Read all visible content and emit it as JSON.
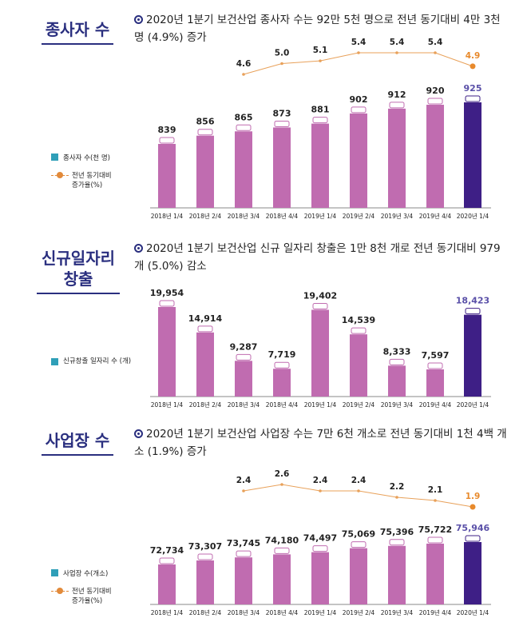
{
  "colors": {
    "bar": "#c06cb0",
    "bar_highlight": "#3e1f86",
    "line": "#e8a15a",
    "line_last": "#e88a2c",
    "title": "#2a2f7f",
    "legend_square": "#2f9fb8",
    "value_highlight": "#5a50a8"
  },
  "sections": [
    {
      "title": "종사자 수",
      "headline": "2020년 1분기 보건산업 종사자 수는 92만 5천 명으로 전년 동기대비 4만 3천 명 (4.9%) 증가",
      "legend_bar": "종사자 수(천 명)",
      "legend_line": "전년 동기대비 증가율(%)"
    },
    {
      "title": "신규일자리 창출",
      "headline": "2020년 1분기 보건산업 신규 일자리 창출은 1만 8천 개로 전년 동기대비 979개 (5.0%) 감소",
      "legend_bar": "신규창출 일자리 수 (개)"
    },
    {
      "title": "사업장 수",
      "headline": "2020년 1분기 보건산업 사업장 수는 7만 6천 개소로 전년 동기대비 1천 4백 개소 (1.9%) 증가",
      "legend_bar": "사업장 수(개소)",
      "legend_line": "전년 동기대비 증가율(%)"
    }
  ],
  "chart_data": [
    {
      "type": "bar",
      "categories": [
        "2018년 1/4",
        "2018년 2/4",
        "2018년 3/4",
        "2018년 4/4",
        "2019년 1/4",
        "2019년 2/4",
        "2019년 3/4",
        "2019년 4/4",
        "2020년 1/4"
      ],
      "series": [
        {
          "name": "종사자 수(천 명)",
          "values": [
            839,
            856,
            865,
            873,
            881,
            902,
            912,
            920,
            925
          ],
          "labels": [
            "839",
            "856",
            "865",
            "873",
            "881",
            "902",
            "912",
            "920",
            "925"
          ]
        },
        {
          "name": "전년 동기대비 증가율(%)",
          "values": [
            null,
            null,
            4.6,
            5.0,
            5.1,
            5.4,
            5.4,
            5.4,
            4.9
          ],
          "labels": [
            "",
            "",
            "4.6",
            "5.0",
            "5.1",
            "5.4",
            "5.4",
            "5.4",
            "4.9"
          ]
        }
      ]
    },
    {
      "type": "bar",
      "categories": [
        "2018년 1/4",
        "2018년 2/4",
        "2018년 3/4",
        "2018년 4/4",
        "2019년 1/4",
        "2019년 2/4",
        "2019년 3/4",
        "2019년 4/4",
        "2020년 1/4"
      ],
      "series": [
        {
          "name": "신규창출 일자리 수 (개)",
          "values": [
            19954,
            14914,
            9287,
            7719,
            19402,
            14539,
            8333,
            7597,
            18423
          ],
          "labels": [
            "19,954",
            "14,914",
            "9,287",
            "7,719",
            "19,402",
            "14,539",
            "8,333",
            "7,597",
            "18,423"
          ]
        }
      ]
    },
    {
      "type": "bar",
      "categories": [
        "2018년 1/4",
        "2018년 2/4",
        "2018년 3/4",
        "2018년 4/4",
        "2019년 1/4",
        "2019년 2/4",
        "2019년 3/4",
        "2019년 4/4",
        "2020년 1/4"
      ],
      "series": [
        {
          "name": "사업장 수(개소)",
          "values": [
            72734,
            73307,
            73745,
            74180,
            74497,
            75069,
            75396,
            75722,
            75946
          ],
          "labels": [
            "72,734",
            "73,307",
            "73,745",
            "74,180",
            "74,497",
            "75,069",
            "75,396",
            "75,722",
            "75,946"
          ]
        },
        {
          "name": "전년 동기대비 증가율(%)",
          "values": [
            null,
            null,
            2.4,
            2.6,
            2.4,
            2.4,
            2.2,
            2.1,
            1.9
          ],
          "labels": [
            "",
            "",
            "2.4",
            "2.6",
            "2.4",
            "2.4",
            "2.2",
            "2.1",
            "1.9"
          ]
        }
      ]
    }
  ]
}
